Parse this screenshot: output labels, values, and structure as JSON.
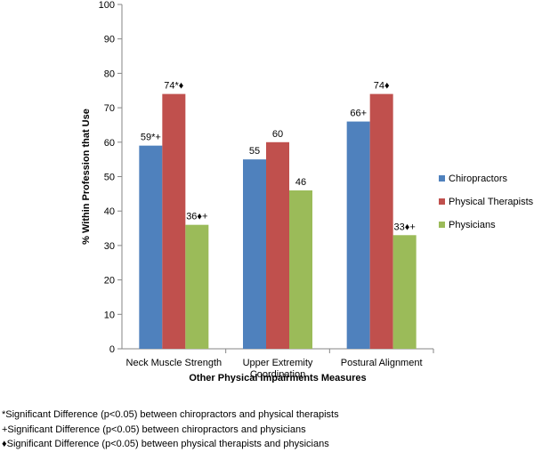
{
  "chart_data": {
    "type": "bar",
    "categories": [
      [
        "Neck Muscle Strength"
      ],
      [
        "Upper Extremity",
        "Coordination"
      ],
      [
        "Postural Alignment"
      ]
    ],
    "series": [
      {
        "name": "Chiropractors",
        "color": "#4F81BD",
        "values": [
          59,
          55,
          66
        ],
        "labels": [
          "59*+",
          "55",
          "66+"
        ]
      },
      {
        "name": "Physical Therapists",
        "color": "#C0504D",
        "values": [
          74,
          60,
          74
        ],
        "labels": [
          "74*♦",
          "60",
          "74♦"
        ]
      },
      {
        "name": "Physicians",
        "color": "#9BBB59",
        "values": [
          36,
          46,
          33
        ],
        "labels": [
          "36♦+",
          "46",
          "33♦+"
        ]
      }
    ],
    "xlabel": "Other Physical Impairments Measures",
    "ylabel": "% Within Profession that Use",
    "ylim": [
      0,
      100
    ],
    "yticks": [
      0,
      10,
      20,
      30,
      40,
      50,
      60,
      70,
      80,
      90,
      100
    ],
    "grid": false,
    "legend_position": "right"
  },
  "footnotes": [
    "*Significant Difference (p<0.05) between chiropractors and physical therapists",
    "+Significant Difference (p<0.05) between chiropractors and physicians",
    "♦Significant Difference (p<0.05) between physical therapists and physicians"
  ]
}
